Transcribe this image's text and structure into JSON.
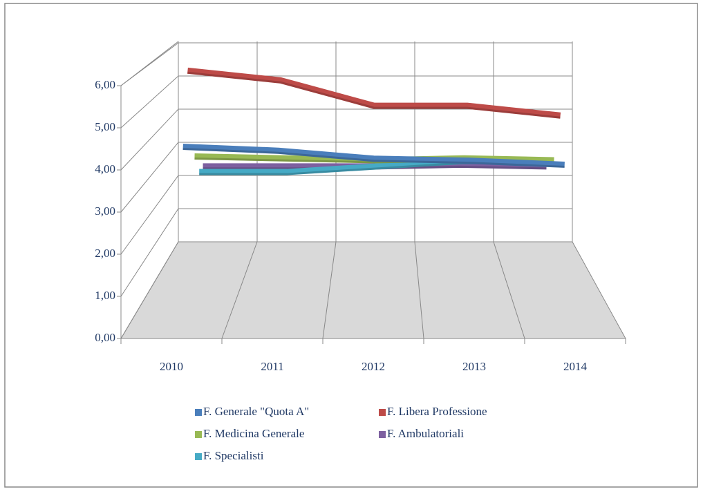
{
  "chart_data": {
    "type": "line3d",
    "categories": [
      "2010",
      "2011",
      "2012",
      "2013",
      "2014"
    ],
    "series": [
      {
        "name": "F. Generale \"Quota A\"",
        "color": "#4a7ebb",
        "values": [
          4.2,
          4.1,
          3.9,
          3.85,
          3.75
        ]
      },
      {
        "name": "F. Libera Professione",
        "color": "#be4b48",
        "values": [
          6.0,
          5.75,
          5.1,
          5.1,
          4.85
        ]
      },
      {
        "name": "F. Medicina Generale",
        "color": "#98b954",
        "values": [
          3.55,
          3.5,
          3.45,
          3.5,
          3.45
        ]
      },
      {
        "name": "F. Ambulatoriali",
        "color": "#7d60a0",
        "values": [
          2.95,
          2.95,
          2.95,
          3.0,
          2.95
        ]
      },
      {
        "name": "F. Specialisti",
        "color": "#46aac5",
        "values": [
          2.95,
          2.95,
          3.1,
          3.25,
          3.25
        ]
      }
    ],
    "ylim": [
      0,
      6
    ],
    "yticks": [
      {
        "value": 0,
        "label": "0,00"
      },
      {
        "value": 1,
        "label": "1,00"
      },
      {
        "value": 2,
        "label": "2,00"
      },
      {
        "value": 3,
        "label": "3,00"
      },
      {
        "value": 4,
        "label": "4,00"
      },
      {
        "value": 5,
        "label": "5,00"
      },
      {
        "value": 6,
        "label": "6,00"
      }
    ],
    "grid": true,
    "legend": "bottom"
  }
}
